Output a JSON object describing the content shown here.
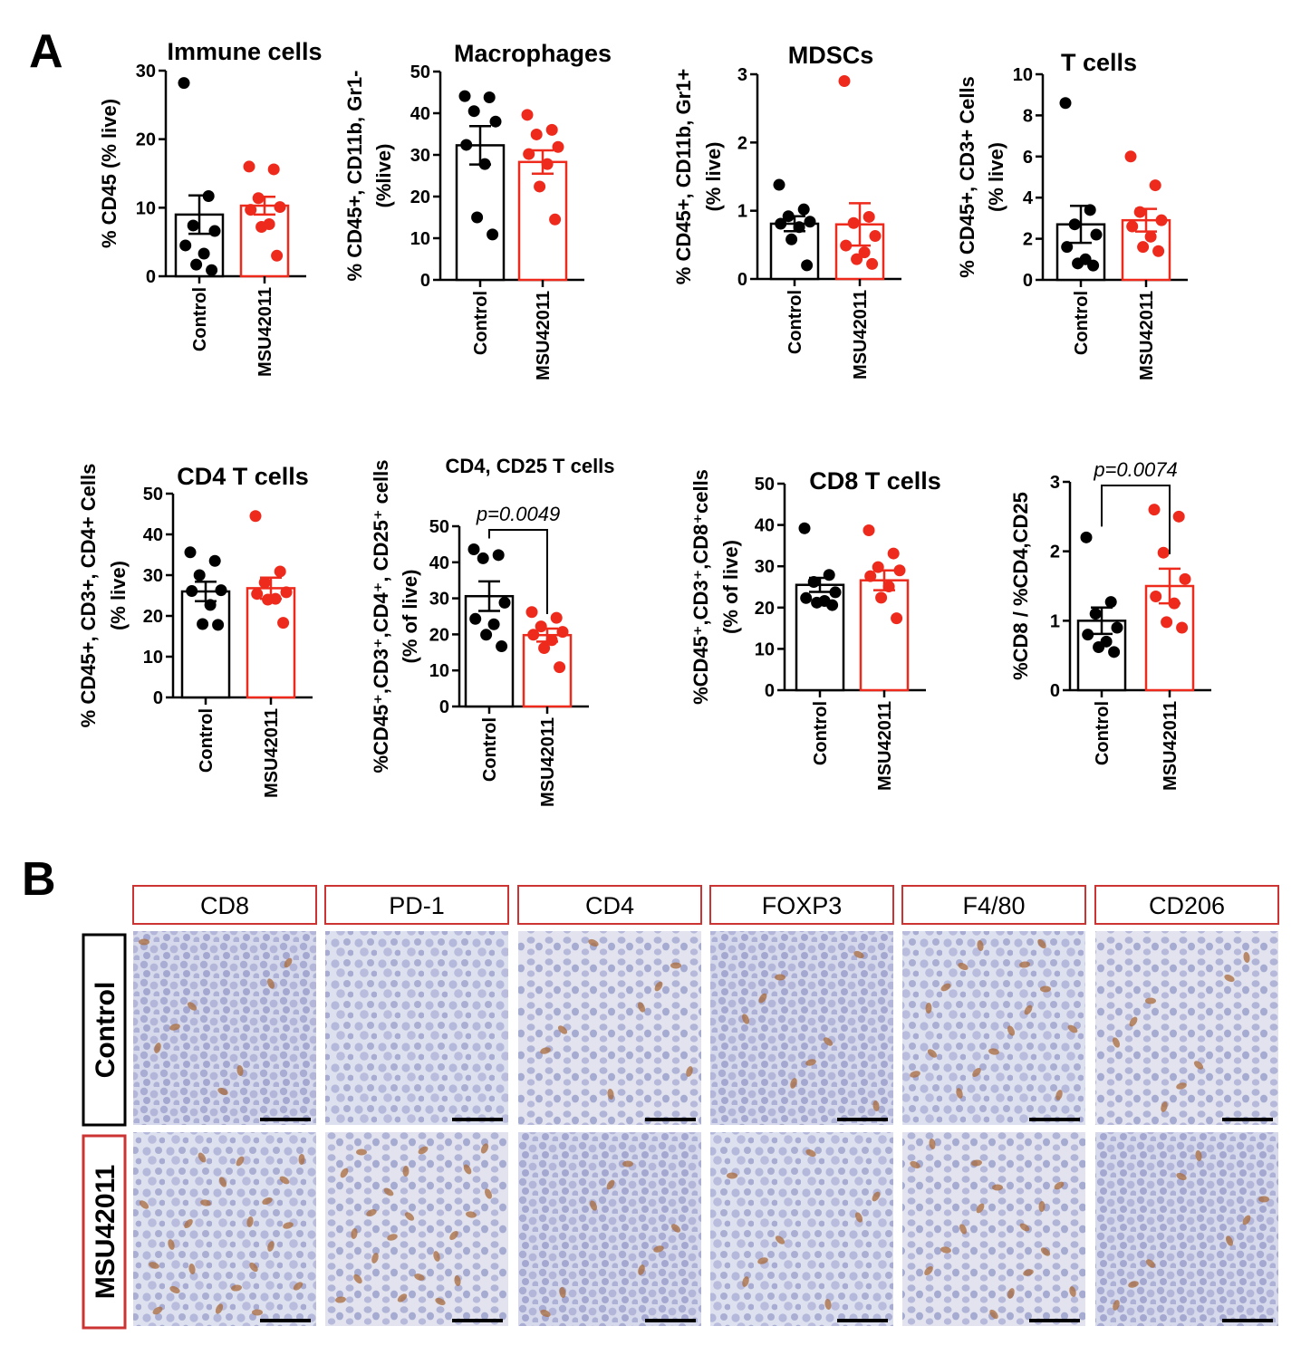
{
  "panel_labels": [
    "A",
    "B"
  ],
  "colors": {
    "control": "#000000",
    "treated": "#ee2a1d",
    "ihc_bg": "#d9d9ea",
    "frame_red": "#cc3333",
    "frame_black": "#000000"
  },
  "chart_data": [
    {
      "type": "bar",
      "title": "Immune cells",
      "ylabel": "% CD45 (% live)",
      "categories": [
        "Control",
        "MSU42011"
      ],
      "ylim": [
        0,
        30
      ],
      "yticks": [
        0,
        10,
        20,
        30
      ],
      "means": [
        9.0,
        10.3
      ],
      "sem": [
        2.8,
        1.3
      ],
      "points": [
        [
          28.2,
          11.7,
          7.4,
          6.6,
          4.5,
          3.3,
          1.7,
          0.9
        ],
        [
          16.0,
          15.6,
          11.4,
          10.1,
          9.7,
          7.6,
          7.2,
          3.0
        ]
      ],
      "pvalue": ""
    },
    {
      "type": "bar",
      "title": "Macrophages",
      "ylabel": "% CD45+, CD11b, Gr1-",
      "ylabel2": "(%live)",
      "categories": [
        "Control",
        "MSU42011"
      ],
      "ylim": [
        0,
        50
      ],
      "yticks": [
        0,
        10,
        20,
        30,
        40,
        50
      ],
      "means": [
        32.3,
        28.3
      ],
      "sem": [
        4.6,
        2.8
      ],
      "points": [
        [
          44.1,
          43.8,
          40.5,
          38.0,
          32.4,
          27.8,
          15.0,
          10.9
        ],
        [
          39.6,
          36.0,
          34.9,
          31.9,
          30.2,
          27.8,
          22.4,
          14.5
        ]
      ],
      "pvalue": ""
    },
    {
      "type": "bar",
      "title": "MDSCs",
      "ylabel": "% CD45+, CD11b, Gr1+",
      "ylabel2": "(% live)",
      "categories": [
        "Control",
        "MSU42011"
      ],
      "ylim": [
        0,
        3
      ],
      "yticks": [
        0,
        1,
        2,
        3
      ],
      "means": [
        0.81,
        0.8
      ],
      "sem": [
        0.11,
        0.31
      ],
      "points": [
        [
          1.38,
          1.02,
          0.92,
          0.84,
          0.81,
          0.76,
          0.58,
          0.2
        ],
        [
          2.9,
          0.91,
          0.82,
          0.63,
          0.49,
          0.39,
          0.29,
          0.22
        ]
      ],
      "pvalue": ""
    },
    {
      "type": "bar",
      "title": "T cells",
      "ylabel": "% CD45+, CD3+ Cells",
      "ylabel2": "(% live)",
      "categories": [
        "Control",
        "MSU42011"
      ],
      "ylim": [
        0,
        10
      ],
      "yticks": [
        0,
        2,
        4,
        6,
        8,
        10
      ],
      "means": [
        2.7,
        2.9
      ],
      "sem": [
        0.9,
        0.55
      ],
      "points": [
        [
          8.6,
          3.4,
          2.7,
          2.2,
          1.6,
          1.0,
          0.8,
          0.7
        ],
        [
          6.0,
          4.6,
          3.3,
          2.9,
          2.6,
          2.1,
          1.6,
          1.4
        ]
      ],
      "pvalue": ""
    },
    {
      "type": "bar",
      "title": "CD4 T cells",
      "ylabel": "% CD45+, CD3+, CD4+ Cells",
      "ylabel2": "(% live)",
      "categories": [
        "Control",
        "MSU42011"
      ],
      "ylim": [
        0,
        50
      ],
      "yticks": [
        0,
        10,
        20,
        30,
        40,
        50
      ],
      "means": [
        26.0,
        26.8
      ],
      "sem": [
        2.4,
        2.6
      ],
      "points": [
        [
          35.6,
          33.5,
          30.0,
          26.3,
          26.1,
          22.7,
          18.0,
          17.8
        ],
        [
          44.5,
          30.9,
          28.2,
          25.8,
          25.4,
          24.2,
          24.0,
          18.3
        ]
      ],
      "pvalue": ""
    },
    {
      "type": "bar",
      "title": "CD4, CD25 T cells",
      "ylabel": "%CD45⁺,CD3⁺,CD4⁺, CD25⁺ cells",
      "ylabel2": "(% of live)",
      "categories": [
        "Control",
        "MSU42011"
      ],
      "ylim": [
        0,
        50
      ],
      "yticks": [
        0,
        10,
        20,
        30,
        40,
        50
      ],
      "means": [
        30.6,
        19.8
      ],
      "sem": [
        4.1,
        1.8
      ],
      "points": [
        [
          43.6,
          42.0,
          41.1,
          28.8,
          24.3,
          22.8,
          19.9,
          16.7
        ],
        [
          26.2,
          24.6,
          22.2,
          20.7,
          19.9,
          18.4,
          16.2,
          10.9
        ]
      ],
      "pvalue": "p=0.0049"
    },
    {
      "type": "bar",
      "title": "CD8 T cells",
      "ylabel": "%CD45⁺,CD3⁺,CD8⁺cells",
      "ylabel2": "(% of live)",
      "categories": [
        "Control",
        "MSU42011"
      ],
      "ylim": [
        0,
        50
      ],
      "yticks": [
        0,
        10,
        20,
        30,
        40,
        50
      ],
      "means": [
        25.5,
        26.6
      ],
      "sem": [
        1.7,
        2.4
      ],
      "points": [
        [
          39.2,
          27.9,
          26.2,
          23.7,
          22.3,
          21.6,
          21.2,
          20.6
        ],
        [
          38.7,
          33.1,
          29.8,
          29.0,
          27.6,
          25.1,
          22.4,
          17.4
        ]
      ],
      "pvalue": ""
    },
    {
      "type": "bar",
      "title": "",
      "ylabel": "%CD8 / %CD4,CD25",
      "categories": [
        "Control",
        "MSU42011"
      ],
      "ylim": [
        0,
        3
      ],
      "yticks": [
        0,
        1,
        2,
        3
      ],
      "means": [
        1.0,
        1.5
      ],
      "sem": [
        0.19,
        0.25
      ],
      "points": [
        [
          2.2,
          1.27,
          1.1,
          0.9,
          0.8,
          0.7,
          0.62,
          0.55
        ],
        [
          2.6,
          2.5,
          1.98,
          1.6,
          1.35,
          1.25,
          0.98,
          0.9
        ]
      ],
      "pvalue": "p=0.0074"
    }
  ],
  "ihc": {
    "markers": [
      "CD8",
      "PD-1",
      "CD4",
      "FOXP3",
      "F4/80",
      "CD206"
    ],
    "marker_frame_color": "#cc3333",
    "rows": [
      "Control",
      "MSU42011"
    ],
    "scale_bar": true
  }
}
